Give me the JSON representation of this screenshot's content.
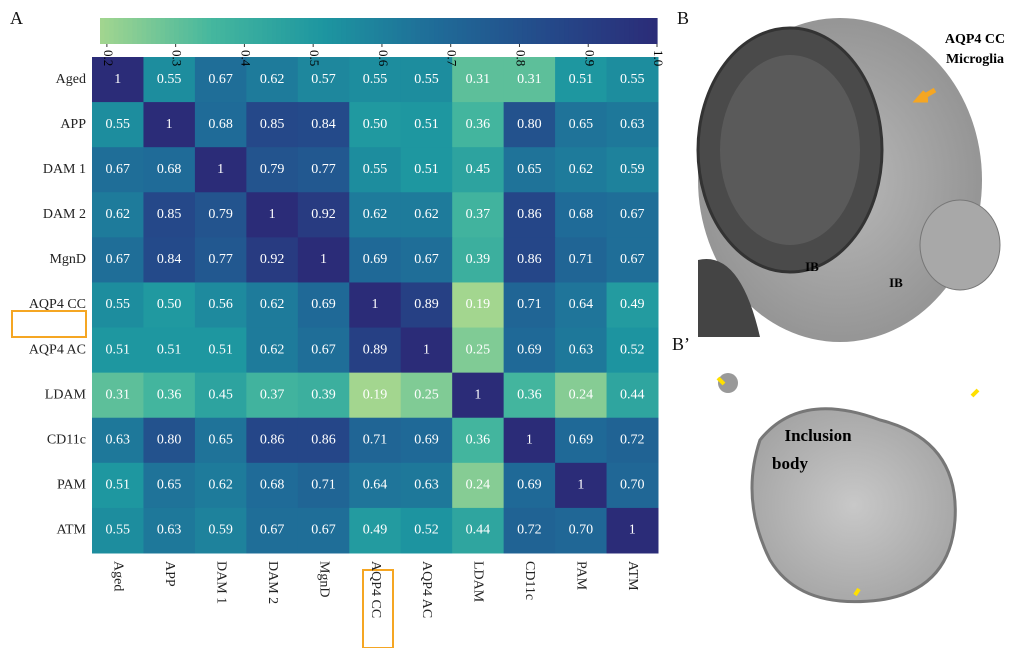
{
  "chart_data": {
    "type": "heatmap",
    "rows": [
      "Aged",
      "APP",
      "DAM 1",
      "DAM 2",
      "MgnD",
      "AQP4 CC",
      "AQP4 AC",
      "LDAM",
      "CD11c",
      "PAM",
      "ATM"
    ],
    "columns": [
      "Aged",
      "APP",
      "DAM 1",
      "DAM 2",
      "MgnD",
      "AQP4 CC",
      "AQP4 AC",
      "LDAM",
      "CD11c",
      "PAM",
      "ATM"
    ],
    "values": [
      [
        1,
        0.55,
        0.67,
        0.62,
        0.57,
        0.55,
        0.55,
        0.31,
        0.31,
        0.51,
        0.55
      ],
      [
        0.55,
        1,
        0.68,
        0.85,
        0.84,
        0.5,
        0.51,
        0.36,
        0.8,
        0.65,
        0.63
      ],
      [
        0.67,
        0.68,
        1,
        0.79,
        0.77,
        0.55,
        0.51,
        0.45,
        0.65,
        0.62,
        0.59
      ],
      [
        0.62,
        0.85,
        0.79,
        1,
        0.92,
        0.62,
        0.62,
        0.37,
        0.86,
        0.68,
        0.67
      ],
      [
        0.67,
        0.84,
        0.77,
        0.92,
        1,
        0.69,
        0.67,
        0.39,
        0.86,
        0.71,
        0.67
      ],
      [
        0.55,
        0.5,
        0.56,
        0.62,
        0.69,
        1,
        0.89,
        0.19,
        0.71,
        0.64,
        0.49
      ],
      [
        0.51,
        0.51,
        0.51,
        0.62,
        0.67,
        0.89,
        1,
        0.25,
        0.69,
        0.63,
        0.52
      ],
      [
        0.31,
        0.36,
        0.45,
        0.37,
        0.39,
        0.19,
        0.25,
        1,
        0.36,
        0.24,
        0.44
      ],
      [
        0.63,
        0.8,
        0.65,
        0.86,
        0.86,
        0.71,
        0.69,
        0.36,
        1,
        0.69,
        0.72
      ],
      [
        0.51,
        0.65,
        0.62,
        0.68,
        0.71,
        0.64,
        0.63,
        0.24,
        0.69,
        1,
        0.7
      ],
      [
        0.55,
        0.63,
        0.59,
        0.67,
        0.67,
        0.49,
        0.52,
        0.44,
        0.72,
        0.7,
        1
      ]
    ],
    "value_labels": [
      [
        "1",
        "0.55",
        "0.67",
        "0.62",
        "0.57",
        "0.55",
        "0.55",
        "0.31",
        "0.31",
        "0.51",
        "0.55"
      ],
      [
        "0.55",
        "1",
        "0.68",
        "0.85",
        "0.84",
        "0.50",
        "0.51",
        "0.36",
        "0.80",
        "0.65",
        "0.63"
      ],
      [
        "0.67",
        "0.68",
        "1",
        "0.79",
        "0.77",
        "0.55",
        "0.51",
        "0.45",
        "0.65",
        "0.62",
        "0.59"
      ],
      [
        "0.62",
        "0.85",
        "0.79",
        "1",
        "0.92",
        "0.62",
        "0.62",
        "0.37",
        "0.86",
        "0.68",
        "0.67"
      ],
      [
        "0.67",
        "0.84",
        "0.77",
        "0.92",
        "1",
        "0.69",
        "0.67",
        "0.39",
        "0.86",
        "0.71",
        "0.67"
      ],
      [
        "0.55",
        "0.50",
        "0.56",
        "0.62",
        "0.69",
        "1",
        "0.89",
        "0.19",
        "0.71",
        "0.64",
        "0.49"
      ],
      [
        "0.51",
        "0.51",
        "0.51",
        "0.62",
        "0.67",
        "0.89",
        "1",
        "0.25",
        "0.69",
        "0.63",
        "0.52"
      ],
      [
        "0.31",
        "0.36",
        "0.45",
        "0.37",
        "0.39",
        "0.19",
        "0.25",
        "1",
        "0.36",
        "0.24",
        "0.44"
      ],
      [
        "0.63",
        "0.80",
        "0.65",
        "0.86",
        "0.86",
        "0.71",
        "0.69",
        "0.36",
        "1",
        "0.69",
        "0.72"
      ],
      [
        "0.51",
        "0.65",
        "0.62",
        "0.68",
        "0.71",
        "0.64",
        "0.63",
        "0.24",
        "0.69",
        "1",
        "0.70"
      ],
      [
        "0.55",
        "0.63",
        "0.59",
        "0.67",
        "0.67",
        "0.49",
        "0.52",
        "0.44",
        "0.72",
        "0.70",
        "1"
      ]
    ],
    "clim": [
      0.19,
      1
    ],
    "cticks": [
      0.2,
      0.3,
      0.4,
      0.5,
      0.6,
      0.7,
      0.8,
      0.9,
      {
        "value": 1,
        "label": "1.0"
      }
    ],
    "colormap": [
      "#a3d68f",
      "#45b79e",
      "#1d96a0",
      "#1f6c98",
      "#244a8a",
      "#2b2c78"
    ]
  },
  "figure": {
    "panel_a": "A",
    "panel_b": "B",
    "panel_b_prime": "B’",
    "callout": [
      "AQP4 CC",
      "Microglia"
    ],
    "ib_labels": [
      "IB",
      "IB"
    ],
    "inclusion_body": [
      "Inclusion",
      "body"
    ]
  }
}
